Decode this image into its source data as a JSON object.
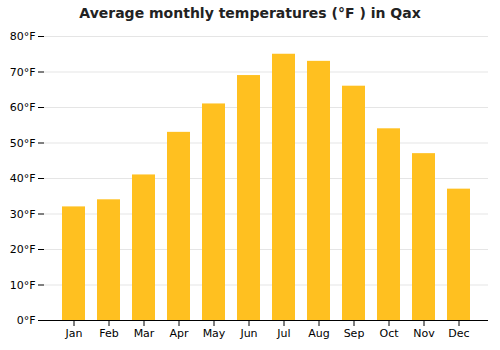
{
  "chart_data": {
    "type": "bar",
    "title": "Average monthly temperatures (°F ) in Qax",
    "categories": [
      "Jan",
      "Feb",
      "Mar",
      "Apr",
      "May",
      "Jun",
      "Jul",
      "Aug",
      "Sep",
      "Oct",
      "Nov",
      "Dec"
    ],
    "values": [
      32,
      34,
      41,
      53,
      61,
      69,
      75,
      73,
      66,
      54,
      47,
      37
    ],
    "color": "#FFC020",
    "ylim": [
      0,
      80
    ],
    "yticks": [
      {
        "value": 0,
        "label": "0°F"
      },
      {
        "value": 10,
        "label": "10°F"
      },
      {
        "value": 20,
        "label": "20°F"
      },
      {
        "value": 30,
        "label": "30°F"
      },
      {
        "value": 40,
        "label": "40°F"
      },
      {
        "value": 50,
        "label": "50°F"
      },
      {
        "value": 60,
        "label": "60°F"
      },
      {
        "value": 70,
        "label": "70°F"
      },
      {
        "value": 80,
        "label": "80°F"
      }
    ],
    "grid": true
  }
}
